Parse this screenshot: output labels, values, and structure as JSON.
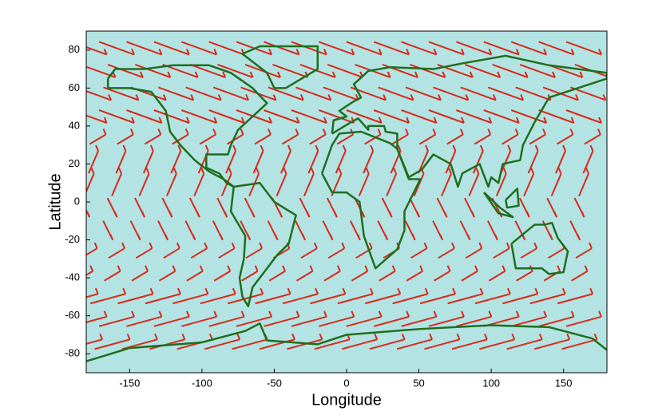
{
  "chart_data": {
    "type": "map",
    "xlabel": "Longitude",
    "ylabel": "Latitude",
    "xlim": [
      -180,
      180
    ],
    "ylim": [
      -90,
      90
    ],
    "xticks": [
      -150,
      -100,
      -50,
      0,
      50,
      100,
      150
    ],
    "yticks": [
      -80,
      -60,
      -40,
      -20,
      0,
      20,
      40,
      60,
      80
    ]
  }
}
